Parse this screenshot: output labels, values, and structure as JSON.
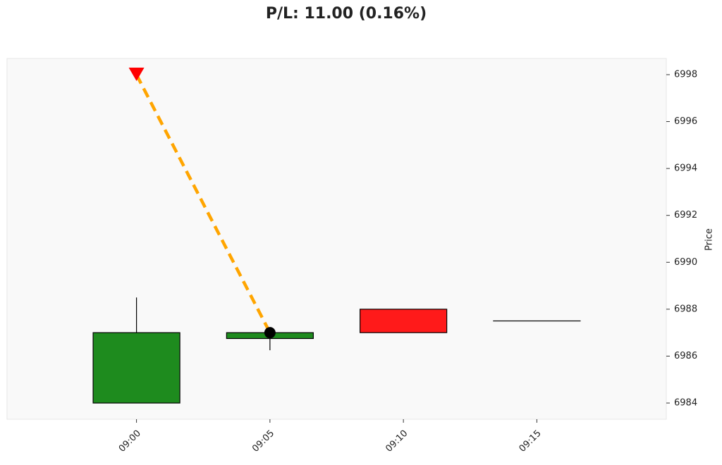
{
  "chart_data": {
    "type": "candlestick",
    "title": "P/L: 11.00 (0.16%)",
    "y_label": "Price",
    "categories": [
      "09:00",
      "09:05",
      "09:10",
      "09:15"
    ],
    "open": [
      6984,
      6986.75,
      6988,
      6987.5
    ],
    "high": [
      6988.5,
      6987,
      6988,
      6987.5
    ],
    "low": [
      6984,
      6986.25,
      6987,
      6987.5
    ],
    "close": [
      6987,
      6987,
      6987,
      6987.5
    ],
    "up_color": "#1e8b1e",
    "down_color": "#ff1a1a",
    "ylim": [
      6983.31,
      6998.69
    ],
    "yticks": [
      6984,
      6986,
      6988,
      6990,
      6992,
      6994,
      6996,
      6998
    ],
    "markers": [
      {
        "x": "09:00",
        "value": 6998,
        "color": "#ff0000",
        "marker": "triangle-down"
      },
      {
        "x": "09:05",
        "value": 6987,
        "color": "#000000",
        "marker": "circle"
      }
    ],
    "trade_line_color": "#ffa500"
  }
}
